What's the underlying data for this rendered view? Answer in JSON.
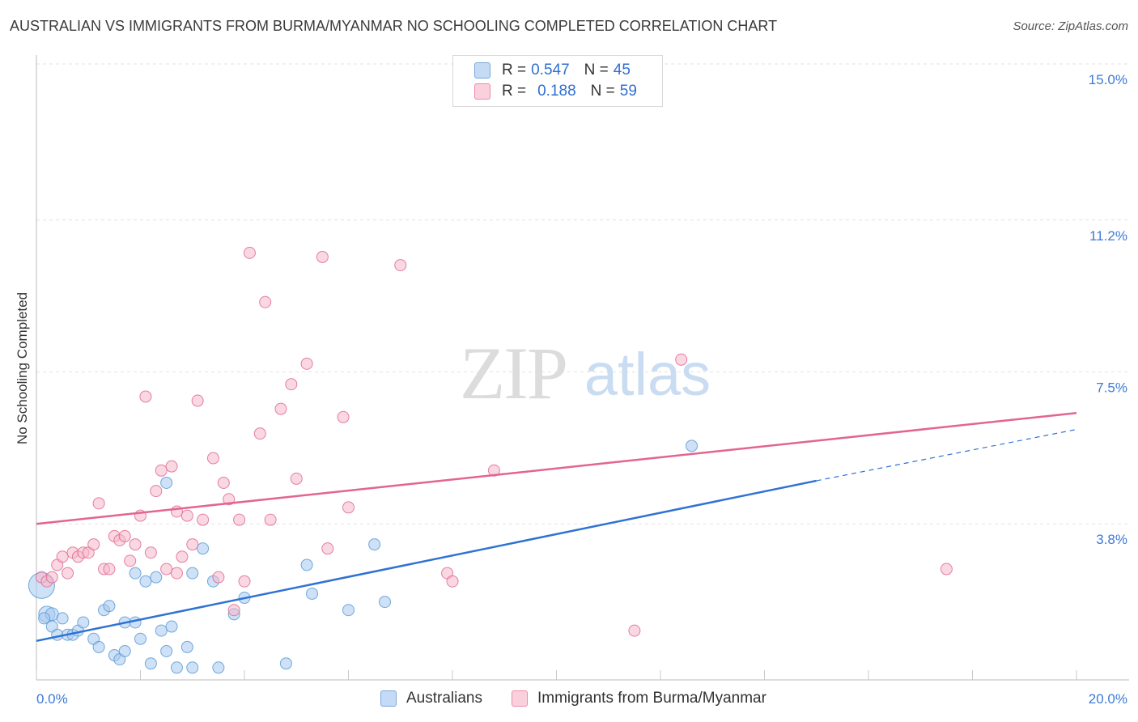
{
  "header": {
    "title": "AUSTRALIAN VS IMMIGRANTS FROM BURMA/MYANMAR NO SCHOOLING COMPLETED CORRELATION CHART",
    "source": "Source: ZipAtlas.com"
  },
  "watermark": {
    "zip": "ZIP",
    "atlas": "atlas"
  },
  "legend": {
    "rows": [
      {
        "r_label": "R =",
        "r_value": "0.547",
        "n_label": "N =",
        "n_value": "45",
        "color": "#a8c8f0"
      },
      {
        "r_label": "R =",
        "r_value": "0.188",
        "n_label": "N =",
        "n_value": "59",
        "color": "#f6b8cb"
      }
    ]
  },
  "bottom_legend": {
    "items": [
      {
        "label": "Australians",
        "color": "#a8c8f0"
      },
      {
        "label": "Immigrants from Burma/Myanmar",
        "color": "#f6b8cb"
      }
    ]
  },
  "chart_data": {
    "type": "scatter",
    "title": "AUSTRALIAN VS IMMIGRANTS FROM BURMA/MYANMAR NO SCHOOLING COMPLETED CORRELATION CHART",
    "xlabel": "",
    "ylabel": "No Schooling Completed",
    "xlim": [
      0,
      20
    ],
    "ylim": [
      0,
      15
    ],
    "x_ticks": [
      "0.0%",
      "20.0%"
    ],
    "y_ticks": [
      {
        "value": 3.8,
        "label": "3.8%"
      },
      {
        "value": 7.5,
        "label": "7.5%"
      },
      {
        "value": 11.2,
        "label": "11.2%"
      },
      {
        "value": 15.0,
        "label": "15.0%"
      }
    ],
    "grid": true,
    "legend_position": "top-center",
    "series": [
      {
        "name": "Australians",
        "color": "#5b9bd5",
        "fill": "#a8c8f0",
        "trend": {
          "x1": 0,
          "y1": 0.95,
          "x2": 15.0,
          "y2": 4.85,
          "dash_x2": 20,
          "dash_y2": 6.1
        },
        "points": [
          [
            0.1,
            2.3,
            16
          ],
          [
            0.2,
            1.6,
            10
          ],
          [
            0.3,
            1.6,
            8
          ],
          [
            0.3,
            1.3,
            7
          ],
          [
            0.4,
            1.1,
            7
          ],
          [
            0.5,
            1.5,
            7
          ],
          [
            0.6,
            1.1,
            7
          ],
          [
            0.7,
            1.1,
            7
          ],
          [
            0.8,
            1.2,
            7
          ],
          [
            0.9,
            1.4,
            7
          ],
          [
            1.1,
            1.0,
            7
          ],
          [
            1.2,
            0.8,
            7
          ],
          [
            1.3,
            1.7,
            7
          ],
          [
            1.4,
            1.8,
            7
          ],
          [
            1.5,
            0.6,
            7
          ],
          [
            1.6,
            0.5,
            7
          ],
          [
            1.7,
            0.7,
            7
          ],
          [
            1.7,
            1.4,
            7
          ],
          [
            1.9,
            1.4,
            7
          ],
          [
            1.9,
            2.6,
            7
          ],
          [
            2.0,
            1.0,
            7
          ],
          [
            2.1,
            2.4,
            7
          ],
          [
            2.2,
            0.4,
            7
          ],
          [
            2.3,
            2.5,
            7
          ],
          [
            2.4,
            1.2,
            7
          ],
          [
            2.5,
            0.7,
            7
          ],
          [
            2.5,
            4.8,
            7
          ],
          [
            2.6,
            1.3,
            7
          ],
          [
            2.7,
            0.3,
            7
          ],
          [
            2.9,
            0.8,
            7
          ],
          [
            3.0,
            0.3,
            7
          ],
          [
            3.0,
            2.6,
            7
          ],
          [
            3.2,
            3.2,
            7
          ],
          [
            3.4,
            2.4,
            7
          ],
          [
            3.5,
            0.3,
            7
          ],
          [
            3.8,
            1.6,
            7
          ],
          [
            4.0,
            2.0,
            7
          ],
          [
            4.8,
            0.4,
            7
          ],
          [
            5.2,
            2.8,
            7
          ],
          [
            5.3,
            2.1,
            7
          ],
          [
            6.0,
            1.7,
            7
          ],
          [
            6.5,
            3.3,
            7
          ],
          [
            6.7,
            1.9,
            7
          ],
          [
            12.6,
            5.7,
            7
          ],
          [
            0.15,
            1.5,
            7
          ]
        ]
      },
      {
        "name": "Immigrants from Burma/Myanmar",
        "color": "#e06a93",
        "fill": "#f6b8cb",
        "trend": {
          "x1": 0,
          "y1": 3.8,
          "x2": 20,
          "y2": 6.5
        },
        "points": [
          [
            0.1,
            2.5,
            7
          ],
          [
            0.2,
            2.4,
            7
          ],
          [
            0.3,
            2.5,
            7
          ],
          [
            0.4,
            2.8,
            7
          ],
          [
            0.5,
            3.0,
            7
          ],
          [
            0.6,
            2.6,
            7
          ],
          [
            0.7,
            3.1,
            7
          ],
          [
            0.8,
            3.0,
            7
          ],
          [
            0.9,
            3.1,
            7
          ],
          [
            1.0,
            3.1,
            7
          ],
          [
            1.1,
            3.3,
            7
          ],
          [
            1.2,
            4.3,
            7
          ],
          [
            1.3,
            2.7,
            7
          ],
          [
            1.4,
            2.7,
            7
          ],
          [
            1.5,
            3.5,
            7
          ],
          [
            1.6,
            3.4,
            7
          ],
          [
            1.7,
            3.5,
            7
          ],
          [
            1.8,
            2.9,
            7
          ],
          [
            1.9,
            3.3,
            7
          ],
          [
            2.0,
            4.0,
            7
          ],
          [
            2.1,
            6.9,
            7
          ],
          [
            2.2,
            3.1,
            7
          ],
          [
            2.3,
            4.6,
            7
          ],
          [
            2.4,
            5.1,
            7
          ],
          [
            2.5,
            2.7,
            7
          ],
          [
            2.6,
            5.2,
            7
          ],
          [
            2.7,
            4.1,
            7
          ],
          [
            2.7,
            2.6,
            7
          ],
          [
            2.8,
            3.0,
            7
          ],
          [
            2.9,
            4.0,
            7
          ],
          [
            3.0,
            3.3,
            7
          ],
          [
            3.1,
            6.8,
            7
          ],
          [
            3.2,
            3.9,
            7
          ],
          [
            3.4,
            5.4,
            7
          ],
          [
            3.5,
            2.5,
            7
          ],
          [
            3.6,
            4.8,
            7
          ],
          [
            3.7,
            4.4,
            7
          ],
          [
            3.8,
            1.7,
            7
          ],
          [
            3.9,
            3.9,
            7
          ],
          [
            4.0,
            2.4,
            7
          ],
          [
            4.1,
            10.4,
            7
          ],
          [
            4.3,
            6.0,
            7
          ],
          [
            4.4,
            9.2,
            7
          ],
          [
            4.5,
            3.9,
            7
          ],
          [
            4.7,
            6.6,
            7
          ],
          [
            4.9,
            7.2,
            7
          ],
          [
            5.0,
            4.9,
            7
          ],
          [
            5.2,
            7.7,
            7
          ],
          [
            5.5,
            10.3,
            7
          ],
          [
            5.6,
            3.2,
            7
          ],
          [
            5.9,
            6.4,
            7
          ],
          [
            6.0,
            4.2,
            7
          ],
          [
            7.0,
            10.1,
            7
          ],
          [
            7.9,
            2.6,
            7
          ],
          [
            8.0,
            2.4,
            7
          ],
          [
            8.8,
            5.1,
            7
          ],
          [
            11.5,
            1.2,
            7
          ],
          [
            12.4,
            7.8,
            7
          ],
          [
            17.5,
            2.7,
            7
          ]
        ]
      }
    ]
  }
}
